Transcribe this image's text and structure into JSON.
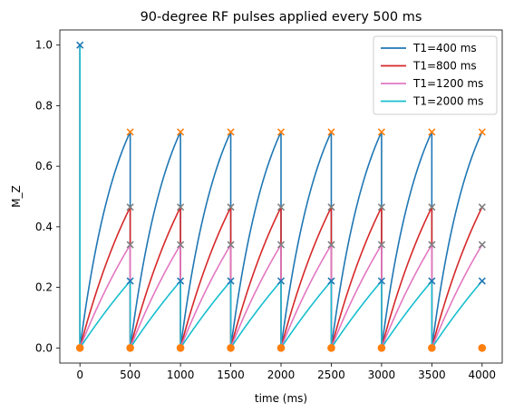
{
  "chart_data": {
    "type": "line",
    "title": "90-degree RF pulses applied every 500 ms",
    "xlabel": "time (ms)",
    "ylabel": "M_Z",
    "xlim": [
      -200,
      4200
    ],
    "ylim": [
      -0.05,
      1.05
    ],
    "xticks": [
      0,
      500,
      1000,
      1500,
      2000,
      2500,
      3000,
      3500,
      4000
    ],
    "yticks": [
      0.0,
      0.2,
      0.4,
      0.6,
      0.8,
      1.0
    ],
    "xtick_labels": [
      "0",
      "500",
      "1000",
      "1500",
      "2000",
      "2500",
      "3000",
      "3500",
      "4000"
    ],
    "ytick_labels": [
      "0.0",
      "0.2",
      "0.4",
      "0.6",
      "0.8",
      "1.0"
    ],
    "pulse_interval_ms": 500,
    "pulse_times_ms": [
      0,
      500,
      1000,
      1500,
      2000,
      2500,
      3000,
      3500,
      4000
    ],
    "initial_mz": 1.0,
    "legend_position": "top-right",
    "series": [
      {
        "name": "T1=400 ms",
        "t1_ms": 400,
        "color": "#1f77b4",
        "peak_mz": 0.713
      },
      {
        "name": "T1=800 ms",
        "t1_ms": 800,
        "color": "#d62728",
        "peak_mz": 0.465
      },
      {
        "name": "T1=1200 ms",
        "t1_ms": 1200,
        "color": "#e377c2",
        "peak_mz": 0.341
      },
      {
        "name": "T1=2000 ms",
        "t1_ms": 2000,
        "color": "#17becf",
        "peak_mz": 0.221
      }
    ],
    "markers": {
      "peak_colors": [
        "#ff7f0e",
        "#7f7f7f",
        "#7f7f7f",
        "#1f77b4"
      ],
      "initial_color": "#1f77b4",
      "zero_dot_color": "#ff7f0e"
    }
  }
}
